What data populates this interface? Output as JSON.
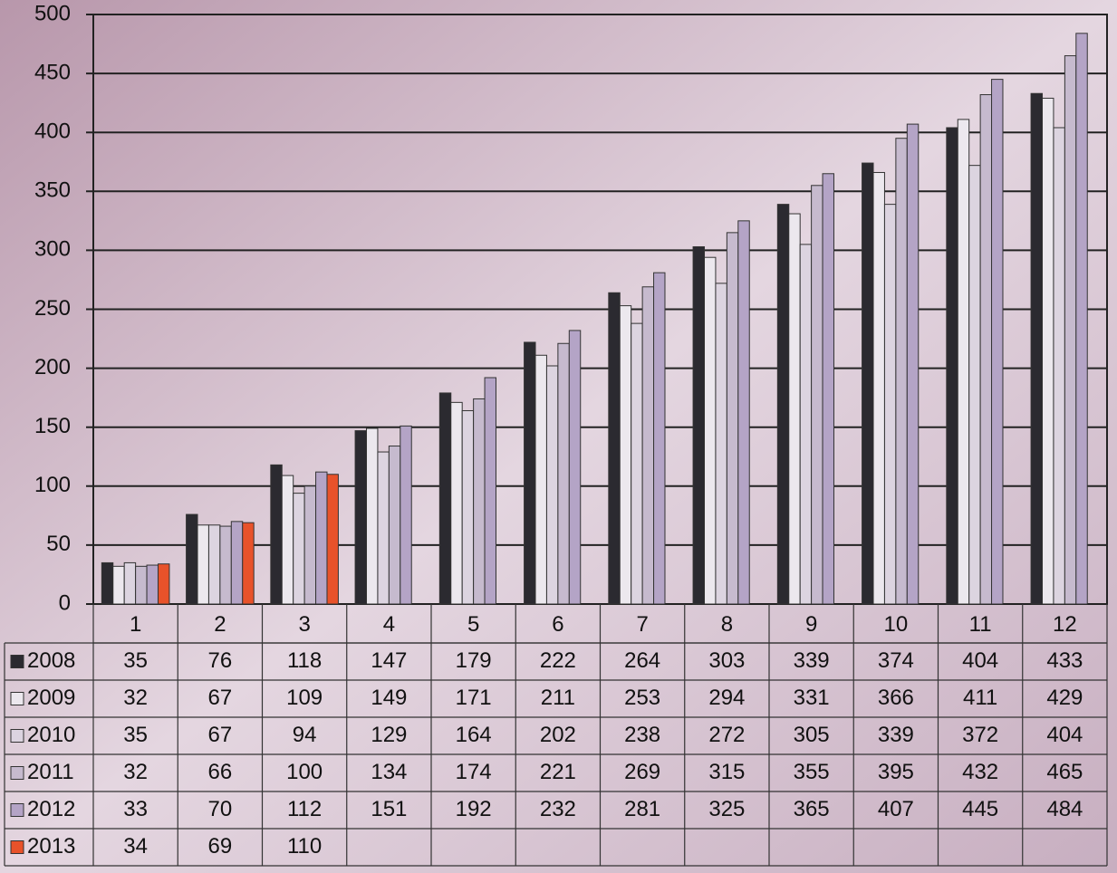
{
  "chart_data": {
    "type": "bar",
    "categories": [
      "1",
      "2",
      "3",
      "4",
      "5",
      "6",
      "7",
      "8",
      "9",
      "10",
      "11",
      "12"
    ],
    "series": [
      {
        "name": "2008",
        "color": "#2b2a30",
        "values": [
          35,
          76,
          118,
          147,
          179,
          222,
          264,
          303,
          339,
          374,
          404,
          433
        ]
      },
      {
        "name": "2009",
        "color": "#ece8ee",
        "values": [
          32,
          67,
          109,
          149,
          171,
          211,
          253,
          294,
          331,
          366,
          411,
          429
        ]
      },
      {
        "name": "2010",
        "color": "#dcd4e0",
        "values": [
          35,
          67,
          94,
          129,
          164,
          202,
          238,
          272,
          305,
          339,
          372,
          404
        ]
      },
      {
        "name": "2011",
        "color": "#c6bace",
        "values": [
          32,
          66,
          100,
          134,
          174,
          221,
          269,
          315,
          355,
          395,
          432,
          465
        ]
      },
      {
        "name": "2012",
        "color": "#b4a4c6",
        "values": [
          33,
          70,
          112,
          151,
          192,
          232,
          281,
          325,
          365,
          407,
          445,
          484
        ]
      },
      {
        "name": "2013",
        "color": "#e8522a",
        "values": [
          34,
          69,
          110,
          null,
          null,
          null,
          null,
          null,
          null,
          null,
          null,
          null
        ]
      }
    ],
    "ylim": [
      0,
      500
    ],
    "yticks": [
      0,
      50,
      100,
      150,
      200,
      250,
      300,
      350,
      400,
      450,
      500
    ],
    "grid": true
  }
}
